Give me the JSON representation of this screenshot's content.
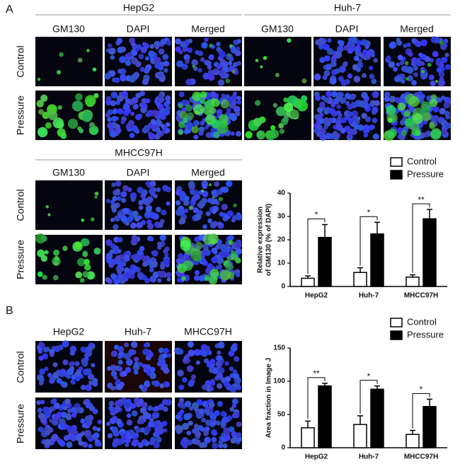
{
  "panel_a": {
    "label": "A",
    "groups": [
      {
        "title": "HepG2",
        "columns": [
          "GM130",
          "DAPI",
          "Merged"
        ],
        "rows": [
          "Control",
          "Pressure"
        ]
      },
      {
        "title": "Huh-7",
        "columns": [
          "GM130",
          "DAPI",
          "Merged"
        ],
        "rows": [
          "Control",
          "Pressure"
        ]
      },
      {
        "title": "MHCC97H",
        "columns": [
          "GM130",
          "DAPI",
          "Merged"
        ],
        "rows": [
          "Control",
          "Pressure"
        ]
      }
    ]
  },
  "panel_b": {
    "label": "B",
    "columns": [
      "HepG2",
      "Huh-7",
      "MHCC97H"
    ],
    "rows": [
      "Control",
      "Pressure"
    ]
  },
  "chart_data": [
    {
      "type": "bar",
      "y_label": [
        "Relative expression",
        "of GM130 (% of DAPI)"
      ],
      "categories": [
        "HepG2",
        "Huh-7",
        "MHCC97H"
      ],
      "series": [
        {
          "name": "Control",
          "color": "#ffffff",
          "values": [
            3.5,
            6,
            4
          ],
          "errors": [
            1,
            2,
            1
          ]
        },
        {
          "name": "Pressure",
          "color": "#000000",
          "values": [
            21,
            22.5,
            29
          ],
          "errors": [
            5.5,
            5,
            4
          ]
        }
      ],
      "significance": [
        "*",
        "*",
        "**"
      ],
      "ylim": [
        0,
        40
      ],
      "yticks": [
        0,
        10,
        20,
        30,
        40
      ]
    },
    {
      "type": "bar",
      "y_label": [
        "Area fraction in Image J"
      ],
      "categories": [
        "HepG2",
        "Huh-7",
        "MHCC97H"
      ],
      "series": [
        {
          "name": "Control",
          "color": "#ffffff",
          "values": [
            30,
            35,
            20
          ],
          "errors": [
            10,
            13,
            6
          ]
        },
        {
          "name": "Pressure",
          "color": "#000000",
          "values": [
            93,
            88,
            62
          ],
          "errors": [
            4,
            5,
            11
          ]
        }
      ],
      "significance": [
        "**",
        "*",
        "*"
      ],
      "ylim": [
        0,
        150
      ],
      "yticks": [
        0,
        50,
        100,
        150
      ]
    }
  ]
}
